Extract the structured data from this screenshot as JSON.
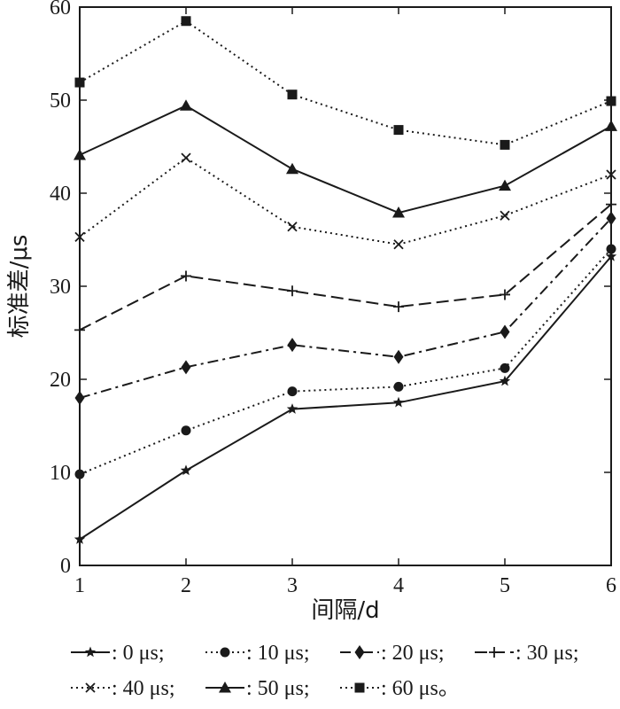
{
  "chart_data": {
    "type": "line",
    "xlabel": "间隔/d",
    "ylabel": "标准差/μs",
    "xlim": [
      1,
      6
    ],
    "ylim": [
      0,
      60
    ],
    "xticks": [
      "1",
      "2",
      "3",
      "4",
      "5",
      "6"
    ],
    "yticks": [
      "0",
      "10",
      "20",
      "30",
      "40",
      "50",
      "60"
    ],
    "x": [
      1,
      2,
      3,
      4,
      5,
      6
    ],
    "grid": false,
    "legend_position": "bottom",
    "series": [
      {
        "name": ": 0 μs;",
        "marker": "star",
        "dash": "solid",
        "values": [
          2.8,
          10.2,
          16.8,
          17.5,
          19.8,
          33.2
        ]
      },
      {
        "name": ": 10 μs;",
        "marker": "circle",
        "dash": "dotted",
        "values": [
          9.8,
          14.5,
          18.7,
          19.2,
          21.2,
          34.0
        ]
      },
      {
        "name": ": 20 μs;",
        "marker": "diamond",
        "dash": "dashdot",
        "values": [
          18.0,
          21.3,
          23.7,
          22.4,
          25.1,
          37.3
        ]
      },
      {
        "name": ": 30 μs;",
        "marker": "plus",
        "dash": "dashed",
        "values": [
          25.3,
          31.1,
          29.5,
          27.8,
          29.1,
          38.8
        ]
      },
      {
        "name": ": 40 μs;",
        "marker": "x",
        "dash": "dotted",
        "values": [
          35.3,
          43.8,
          36.4,
          34.5,
          37.6,
          42.0
        ]
      },
      {
        "name": ": 50 μs;",
        "marker": "triangle",
        "dash": "solid",
        "values": [
          44.1,
          49.4,
          42.6,
          37.9,
          40.8,
          47.2
        ]
      },
      {
        "name": ": 60 μs。",
        "marker": "square",
        "dash": "dotted",
        "values": [
          51.9,
          58.5,
          50.6,
          46.8,
          45.2,
          49.9
        ]
      }
    ]
  }
}
